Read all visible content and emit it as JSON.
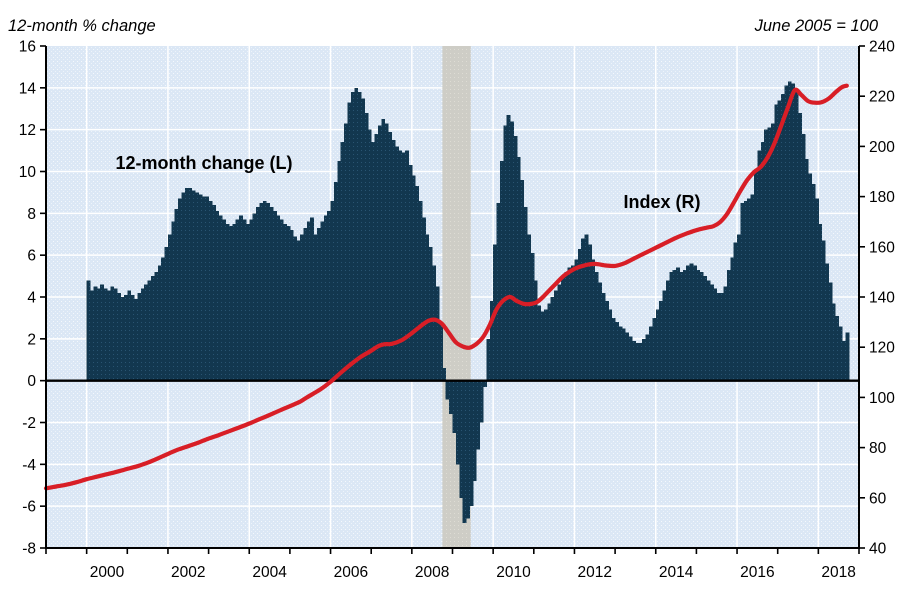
{
  "header": {
    "left_title": "12-month % change",
    "right_title": "June 2005 = 100"
  },
  "annotations": {
    "bars_label": "12-month change (L)",
    "line_label": "Index (R)"
  },
  "colors": {
    "bar_fill": "#12374f",
    "bar_dot": "#2e5b7b",
    "line_red": "#d81e26",
    "plot_bg": "#dbe7f5",
    "stipple": "#ffffff",
    "recession_band": "#cecdc6",
    "band_dot": "#dedcd4",
    "gridline": "#ffffff",
    "axis": "#000000"
  },
  "chart_data": {
    "type": "bar+line",
    "title": "12-month % change",
    "right_axis_note": "June 2005 = 100",
    "grid": true,
    "left_axis": {
      "min": -8,
      "max": 16,
      "ticks": [
        16,
        14,
        12,
        10,
        8,
        6,
        4,
        2,
        0,
        -2,
        -4,
        -6,
        -8
      ],
      "label": "12-month % change"
    },
    "right_axis": {
      "min": 40,
      "max": 240,
      "ticks": [
        240,
        220,
        200,
        180,
        160,
        140,
        120,
        100,
        80,
        60,
        40
      ],
      "label": "Index, June 2005 = 100"
    },
    "x_axis": {
      "start_year": 1999,
      "end_year": 2019,
      "tick_every_years": 1,
      "label_years": [
        2000,
        2002,
        2004,
        2006,
        2008,
        2010,
        2012,
        2014,
        2016,
        2018
      ],
      "gridline_years": [
        2000,
        2002,
        2004,
        2006,
        2008,
        2010,
        2012,
        2014,
        2016,
        2018
      ]
    },
    "recession_band": {
      "start": 2008.75,
      "end": 2009.45
    },
    "bars": {
      "name": "12-month change (L)",
      "axis": "left",
      "start_year": 2000,
      "start_month": 1,
      "monthly_values": [
        4.8,
        4.3,
        4.5,
        4.4,
        4.6,
        4.4,
        4.3,
        4.5,
        4.4,
        4.2,
        4.0,
        4.1,
        4.3,
        4.1,
        3.9,
        4.2,
        4.4,
        4.6,
        4.8,
        5.0,
        5.2,
        5.5,
        5.9,
        6.4,
        7.0,
        7.6,
        8.2,
        8.7,
        9.0,
        9.2,
        9.2,
        9.1,
        9.0,
        8.9,
        8.8,
        8.8,
        8.6,
        8.4,
        8.1,
        7.9,
        7.7,
        7.5,
        7.4,
        7.5,
        7.7,
        7.9,
        7.7,
        7.5,
        7.7,
        8.0,
        8.3,
        8.5,
        8.6,
        8.5,
        8.3,
        8.1,
        7.9,
        7.7,
        7.5,
        7.4,
        7.2,
        6.9,
        6.7,
        7.0,
        7.3,
        7.6,
        7.8,
        7.0,
        7.3,
        7.6,
        7.9,
        8.1,
        8.6,
        9.5,
        10.5,
        11.4,
        12.3,
        13.3,
        13.8,
        14.0,
        13.8,
        13.5,
        12.8,
        12.0,
        11.4,
        11.8,
        12.2,
        12.5,
        12.3,
        11.9,
        11.5,
        11.2,
        11.0,
        10.9,
        11.0,
        10.3,
        9.8,
        9.3,
        8.6,
        7.8,
        7.0,
        6.4,
        5.5,
        4.5,
        2.8,
        0.6,
        -0.9,
        -1.6,
        -2.5,
        -4.0,
        -5.6,
        -6.8,
        -6.6,
        -6.0,
        -4.8,
        -3.3,
        -2.0,
        -0.3,
        2.0,
        3.8,
        6.5,
        8.5,
        10.5,
        12.2,
        12.7,
        12.4,
        11.7,
        10.7,
        9.6,
        8.3,
        7.0,
        6.1,
        4.8,
        3.6,
        3.3,
        3.4,
        3.7,
        4.0,
        4.3,
        4.6,
        4.9,
        5.2,
        5.4,
        5.5,
        5.8,
        6.3,
        6.8,
        7.0,
        6.5,
        5.8,
        5.2,
        4.7,
        4.2,
        3.8,
        3.4,
        3.0,
        2.8,
        2.6,
        2.5,
        2.3,
        2.1,
        1.9,
        1.8,
        1.8,
        2.0,
        2.2,
        2.6,
        3.0,
        3.4,
        3.8,
        4.3,
        4.8,
        5.2,
        5.3,
        5.4,
        5.2,
        5.3,
        5.5,
        5.6,
        5.5,
        5.3,
        5.2,
        5.0,
        4.8,
        4.6,
        4.4,
        4.2,
        4.2,
        4.5,
        5.3,
        5.9,
        6.6,
        7.0,
        8.5,
        8.6,
        8.7,
        8.9,
        10.0,
        11.0,
        11.4,
        12.0,
        12.1,
        12.3,
        13.2,
        13.4,
        13.7,
        14.1,
        14.3,
        14.2,
        13.8,
        12.8,
        11.8,
        10.6,
        9.9,
        9.4,
        8.7,
        7.5,
        6.7,
        5.6,
        4.7,
        3.7,
        3.1,
        2.6,
        1.9,
        2.3
      ]
    },
    "line": {
      "name": "Index (R)",
      "axis": "right",
      "points": [
        [
          1999.0,
          63.8
        ],
        [
          1999.25,
          64.5
        ],
        [
          1999.5,
          65.2
        ],
        [
          1999.75,
          66.2
        ],
        [
          2000.0,
          67.4
        ],
        [
          2000.25,
          68.4
        ],
        [
          2000.5,
          69.4
        ],
        [
          2000.75,
          70.4
        ],
        [
          2001.0,
          71.5
        ],
        [
          2001.25,
          72.6
        ],
        [
          2001.5,
          74.0
        ],
        [
          2001.75,
          75.7
        ],
        [
          2002.0,
          77.5
        ],
        [
          2002.25,
          79.2
        ],
        [
          2002.5,
          80.6
        ],
        [
          2002.75,
          82.0
        ],
        [
          2003.0,
          83.6
        ],
        [
          2003.25,
          85.0
        ],
        [
          2003.5,
          86.5
        ],
        [
          2003.75,
          88.0
        ],
        [
          2004.0,
          89.6
        ],
        [
          2004.25,
          91.3
        ],
        [
          2004.5,
          93.0
        ],
        [
          2004.75,
          94.8
        ],
        [
          2005.0,
          96.5
        ],
        [
          2005.25,
          98.3
        ],
        [
          2005.417,
          100.0
        ],
        [
          2005.75,
          103.2
        ],
        [
          2006.0,
          106.2
        ],
        [
          2006.25,
          109.8
        ],
        [
          2006.5,
          113.2
        ],
        [
          2006.75,
          116.2
        ],
        [
          2007.0,
          118.6
        ],
        [
          2007.17,
          120.4
        ],
        [
          2007.33,
          121.2
        ],
        [
          2007.5,
          121.3
        ],
        [
          2007.75,
          122.8
        ],
        [
          2008.0,
          125.6
        ],
        [
          2008.25,
          128.8
        ],
        [
          2008.42,
          130.6
        ],
        [
          2008.58,
          130.9
        ],
        [
          2008.75,
          129.2
        ],
        [
          2008.92,
          125.5
        ],
        [
          2009.08,
          122.0
        ],
        [
          2009.25,
          120.3
        ],
        [
          2009.42,
          119.8
        ],
        [
          2009.58,
          121.2
        ],
        [
          2009.75,
          124.0
        ],
        [
          2009.92,
          129.0
        ],
        [
          2010.08,
          135.0
        ],
        [
          2010.25,
          138.6
        ],
        [
          2010.42,
          140.0
        ],
        [
          2010.58,
          138.4
        ],
        [
          2010.75,
          137.3
        ],
        [
          2010.92,
          137.2
        ],
        [
          2011.08,
          138.0
        ],
        [
          2011.25,
          140.4
        ],
        [
          2011.5,
          144.6
        ],
        [
          2011.75,
          148.6
        ],
        [
          2012.0,
          151.2
        ],
        [
          2012.25,
          152.6
        ],
        [
          2012.5,
          153.2
        ],
        [
          2012.75,
          152.6
        ],
        [
          2013.0,
          152.4
        ],
        [
          2013.25,
          153.6
        ],
        [
          2013.5,
          155.6
        ],
        [
          2013.75,
          157.6
        ],
        [
          2014.0,
          159.6
        ],
        [
          2014.25,
          161.6
        ],
        [
          2014.5,
          163.6
        ],
        [
          2014.75,
          165.2
        ],
        [
          2015.0,
          166.6
        ],
        [
          2015.25,
          167.6
        ],
        [
          2015.42,
          168.2
        ],
        [
          2015.58,
          169.8
        ],
        [
          2015.75,
          173.0
        ],
        [
          2015.92,
          177.6
        ],
        [
          2016.08,
          182.2
        ],
        [
          2016.25,
          186.6
        ],
        [
          2016.42,
          189.8
        ],
        [
          2016.58,
          191.8
        ],
        [
          2016.75,
          195.6
        ],
        [
          2016.92,
          201.2
        ],
        [
          2017.08,
          208.0
        ],
        [
          2017.25,
          215.5
        ],
        [
          2017.42,
          222.4
        ],
        [
          2017.58,
          220.5
        ],
        [
          2017.75,
          218.0
        ],
        [
          2017.92,
          217.4
        ],
        [
          2018.08,
          217.6
        ],
        [
          2018.25,
          219.0
        ],
        [
          2018.42,
          221.5
        ],
        [
          2018.58,
          223.6
        ],
        [
          2018.7,
          224.2
        ]
      ]
    }
  }
}
